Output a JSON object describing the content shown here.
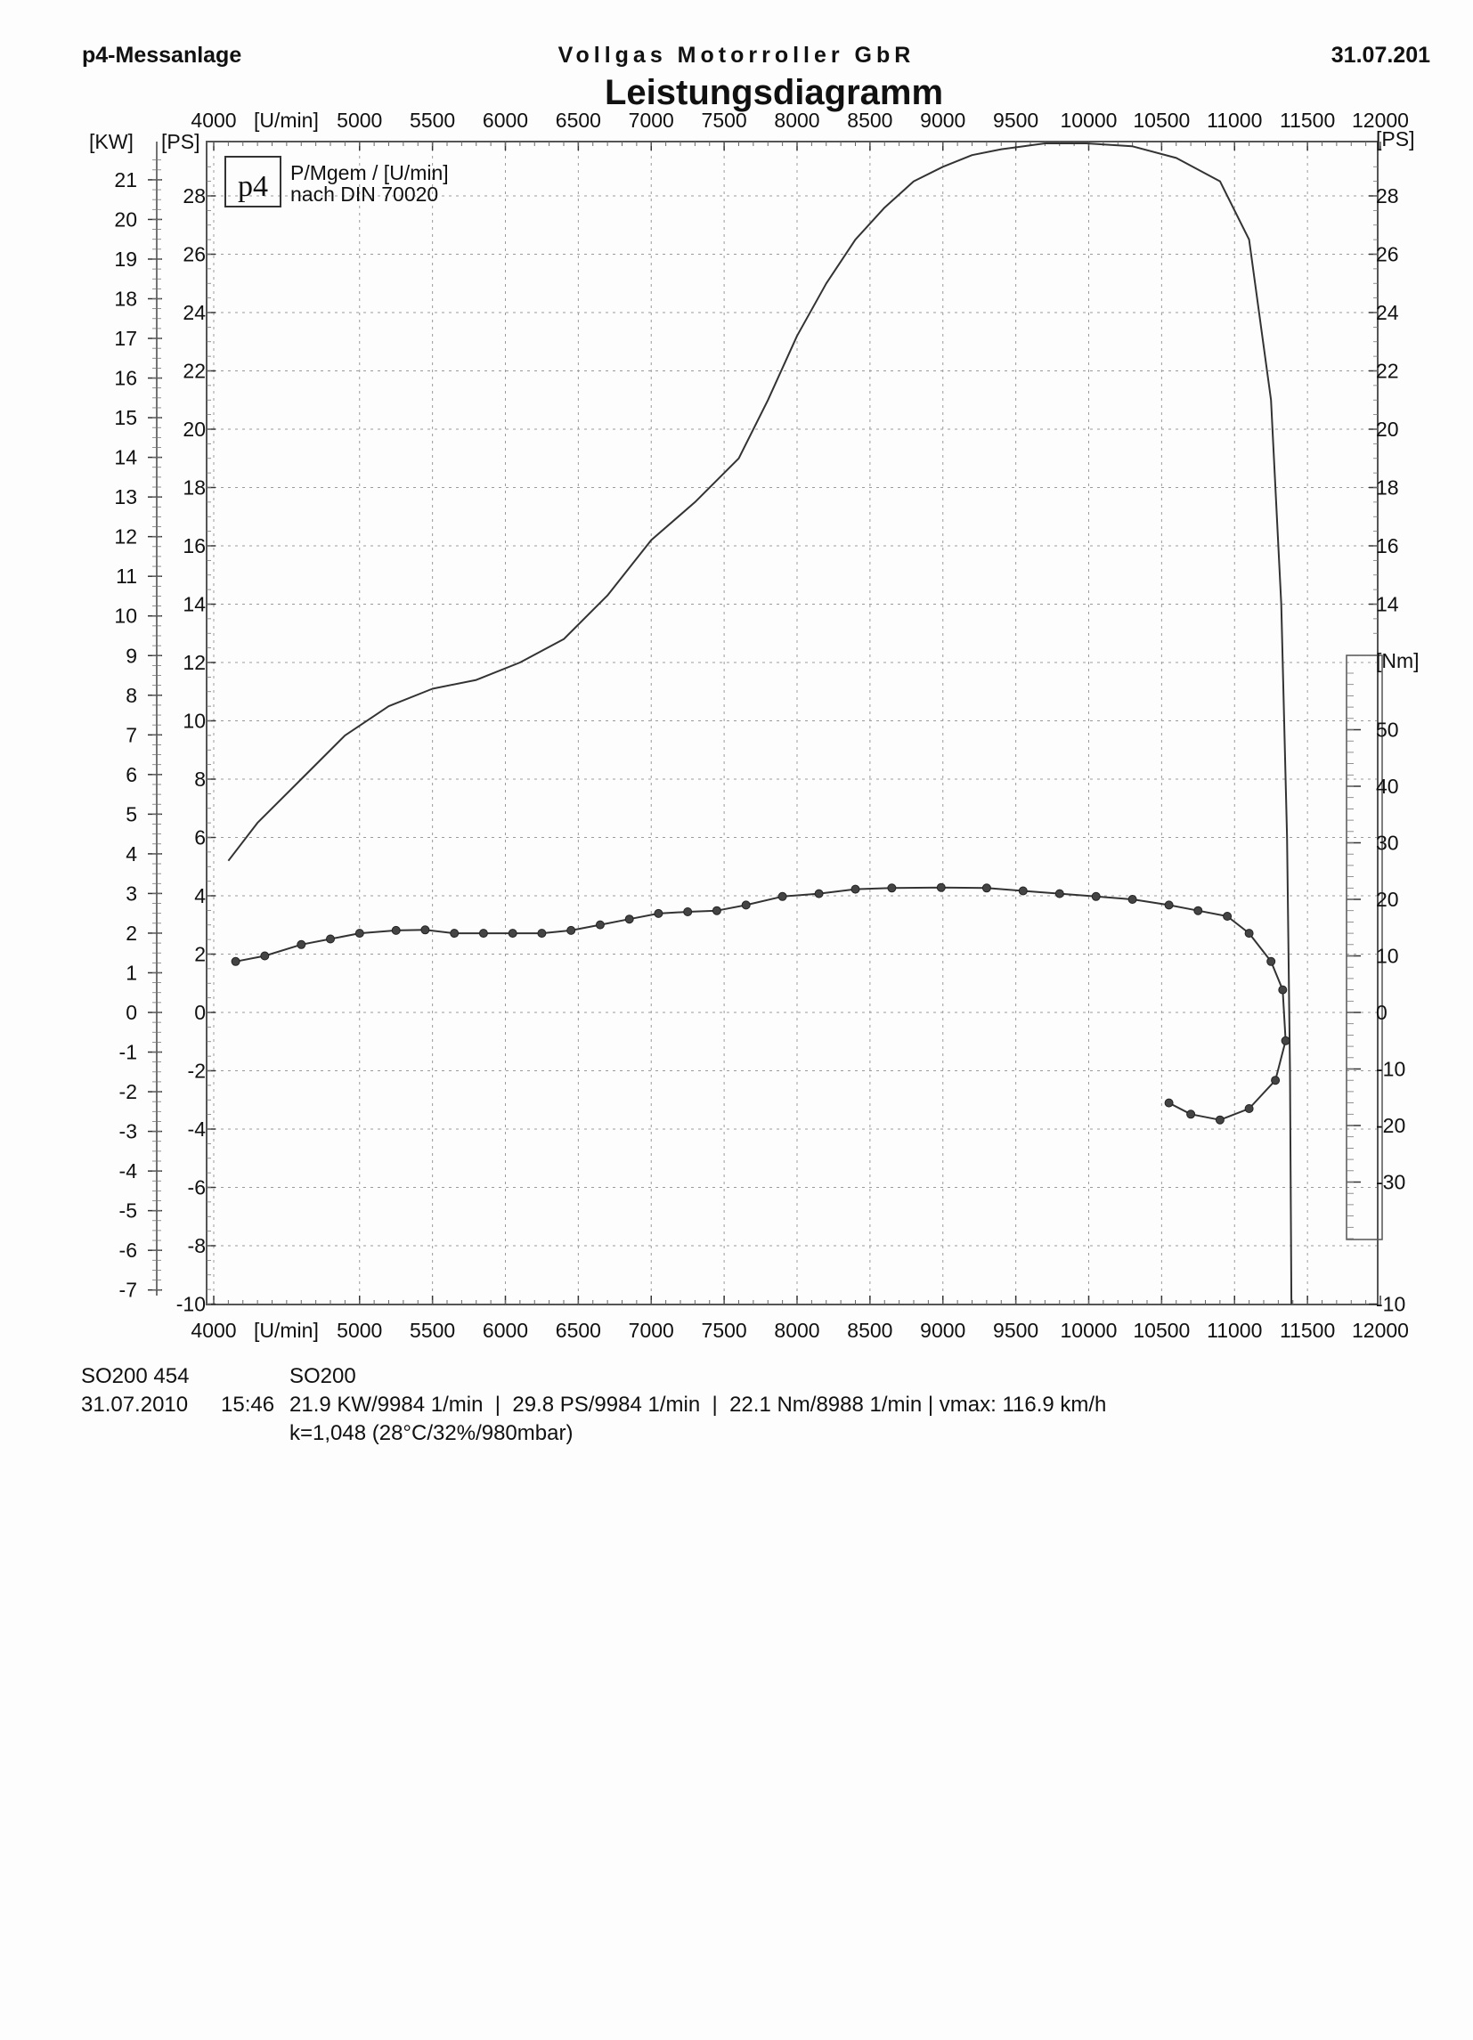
{
  "header": {
    "left": "p4-Messanlage",
    "center": "Vollgas Motorroller GbR",
    "right": "31.07.201"
  },
  "chart_title": "Leistungsdiagramm",
  "legend": {
    "logo": "p4",
    "line1": "P/Mgem / [U/min]",
    "line2": "nach DIN 70020"
  },
  "axis_labels": {
    "rpm_unit": "[U/min]",
    "kw": "[KW]",
    "ps_left": "[PS]",
    "ps_right": "[PS]",
    "nm": "[Nm]"
  },
  "footer": {
    "line1_left": "SO200 454",
    "line1_right": "SO200",
    "line2_date": "31.07.2010",
    "line2_time": "15:46",
    "line2_results": "21.9 KW/9984 1/min  |  29.8 PS/9984 1/min  |  22.1 Nm/8988 1/min | vmax: 116.9 km/h",
    "line3": "k=1,048 (28°C/32%/980mbar)"
  },
  "chart_data": {
    "type": "line",
    "title": "Leistungsdiagramm",
    "x_axis": {
      "label": "[U/min]",
      "range": [
        4000,
        12000
      ],
      "ticks": [
        4000,
        5000,
        5500,
        6000,
        6500,
        7000,
        7500,
        8000,
        8500,
        9000,
        9500,
        10000,
        10500,
        11000,
        11500,
        12000
      ]
    },
    "y_axis_ps": {
      "label": "[PS]",
      "range": [
        -10,
        30
      ],
      "ticks": [
        -10,
        -8,
        -6,
        -4,
        -2,
        0,
        2,
        4,
        6,
        8,
        10,
        12,
        14,
        16,
        18,
        20,
        22,
        24,
        26,
        28
      ]
    },
    "y_axis_kw": {
      "label": "[KW]",
      "ticks": [
        -7,
        -6,
        -5,
        -4,
        -3,
        -2,
        -1,
        0,
        1,
        2,
        3,
        4,
        5,
        6,
        7,
        8,
        9,
        10,
        11,
        12,
        13,
        14,
        15,
        16,
        17,
        18,
        19,
        20,
        21
      ]
    },
    "y_axis_ps_right": {
      "label": "[PS]",
      "ticks": [
        -10,
        14,
        16,
        18,
        20,
        22,
        24,
        26,
        28
      ]
    },
    "y_axis_nm": {
      "label": "[Nm]",
      "range": [
        -40,
        60
      ],
      "ticks": [
        -30,
        -20,
        -10,
        0,
        10,
        20,
        30,
        40,
        50
      ]
    },
    "grid": true,
    "series": [
      {
        "axis": "ps",
        "color": "#333333",
        "markers": false,
        "points": [
          [
            4100,
            5.2
          ],
          [
            4300,
            6.5
          ],
          [
            4600,
            8
          ],
          [
            4900,
            9.5
          ],
          [
            5200,
            10.5
          ],
          [
            5500,
            11.1
          ],
          [
            5800,
            11.4
          ],
          [
            6100,
            12
          ],
          [
            6400,
            12.8
          ],
          [
            6700,
            14.3
          ],
          [
            7000,
            16.2
          ],
          [
            7300,
            17.5
          ],
          [
            7600,
            19
          ],
          [
            7800,
            21
          ],
          [
            8000,
            23.2
          ],
          [
            8200,
            25
          ],
          [
            8400,
            26.5
          ],
          [
            8600,
            27.6
          ],
          [
            8800,
            28.5
          ],
          [
            9000,
            29
          ],
          [
            9200,
            29.4
          ],
          [
            9400,
            29.6
          ],
          [
            9700,
            29.8
          ],
          [
            9984,
            29.8
          ],
          [
            10300,
            29.7
          ],
          [
            10600,
            29.3
          ],
          [
            10900,
            28.5
          ],
          [
            11100,
            26.5
          ],
          [
            11250,
            21
          ],
          [
            11320,
            14
          ],
          [
            11360,
            6
          ],
          [
            11380,
            -2
          ],
          [
            11390,
            -10
          ]
        ]
      },
      {
        "axis": "nm",
        "color": "#333333",
        "markers": true,
        "points": [
          [
            4150,
            9
          ],
          [
            4350,
            10
          ],
          [
            4600,
            12
          ],
          [
            4800,
            13
          ],
          [
            5000,
            14
          ],
          [
            5250,
            14.5
          ],
          [
            5450,
            14.6
          ],
          [
            5650,
            14
          ],
          [
            5850,
            14
          ],
          [
            6050,
            14
          ],
          [
            6250,
            14
          ],
          [
            6450,
            14.5
          ],
          [
            6650,
            15.5
          ],
          [
            6850,
            16.5
          ],
          [
            7050,
            17.5
          ],
          [
            7250,
            17.8
          ],
          [
            7450,
            18
          ],
          [
            7650,
            19
          ],
          [
            7900,
            20.5
          ],
          [
            8150,
            21
          ],
          [
            8400,
            21.8
          ],
          [
            8650,
            22
          ],
          [
            8988,
            22.1
          ],
          [
            9300,
            22
          ],
          [
            9550,
            21.5
          ],
          [
            9800,
            21
          ],
          [
            10050,
            20.5
          ],
          [
            10300,
            20
          ],
          [
            10550,
            19
          ],
          [
            10750,
            18
          ],
          [
            10950,
            17
          ],
          [
            11100,
            14
          ],
          [
            11250,
            9
          ],
          [
            11330,
            4
          ],
          [
            11350,
            -5
          ],
          [
            11280,
            -12
          ],
          [
            11100,
            -17
          ],
          [
            10900,
            -19
          ],
          [
            10700,
            -18
          ],
          [
            10550,
            -16
          ]
        ]
      }
    ]
  }
}
